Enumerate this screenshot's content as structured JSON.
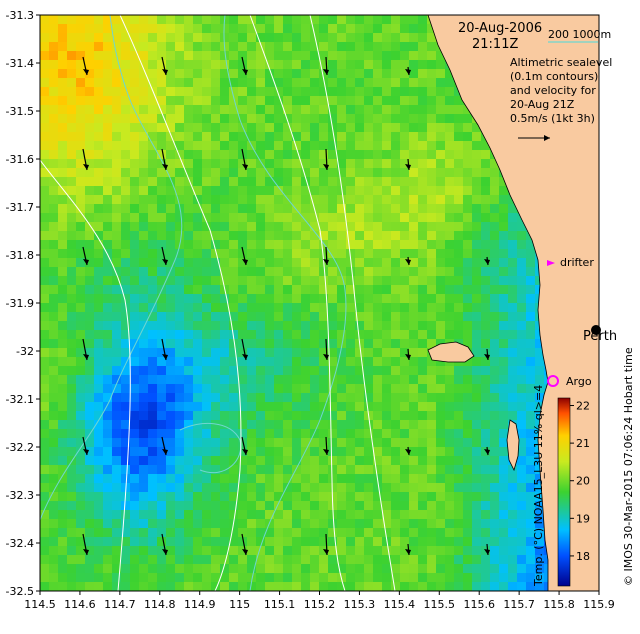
{
  "header": {
    "date": "20-Aug-2006",
    "time": "21:11Z",
    "isobath_label": "200  1000m",
    "isobath_color": "#6fd6d0"
  },
  "info_lines": [
    "Altimetric sealevel",
    "(0.1m contours)",
    "and velocity for",
    "20-Aug 21Z",
    "0.5m/s (1kt 3h)"
  ],
  "places": {
    "perth": "Perth",
    "drifter": "drifter",
    "argo": "Argo"
  },
  "axes": {
    "x_ticks": [
      "114.5",
      "114.6",
      "114.7",
      "114.8",
      "114.9",
      "115",
      "115.1",
      "115.2",
      "115.3",
      "115.4",
      "115.5",
      "115.6",
      "115.7",
      "115.8",
      "115.9"
    ],
    "y_ticks": [
      "-31.3",
      "-31.4",
      "-31.5",
      "-31.6",
      "-31.7",
      "-31.8",
      "-31.9",
      "-32",
      "-32.1",
      "-32.2",
      "-32.3",
      "-32.4",
      "-32.5"
    ],
    "lon_range": [
      114.5,
      115.9
    ],
    "lat_range": [
      -32.5,
      -31.3
    ]
  },
  "colorbar": {
    "ticks": [
      "18",
      "19",
      "20",
      "21",
      "22"
    ],
    "range": [
      17.2,
      22.2
    ],
    "label": "Temp. (°C) NOAA15_L3U 11% ql>=4"
  },
  "credit": "© IMOS 30-Mar-2015 07:06:24 Hobart time",
  "colors": {
    "land": "#f9caa0",
    "arrow": "#000000",
    "contour": "#ffffff",
    "drifter": "#ff00ff",
    "argo": "#ff00ff"
  }
}
